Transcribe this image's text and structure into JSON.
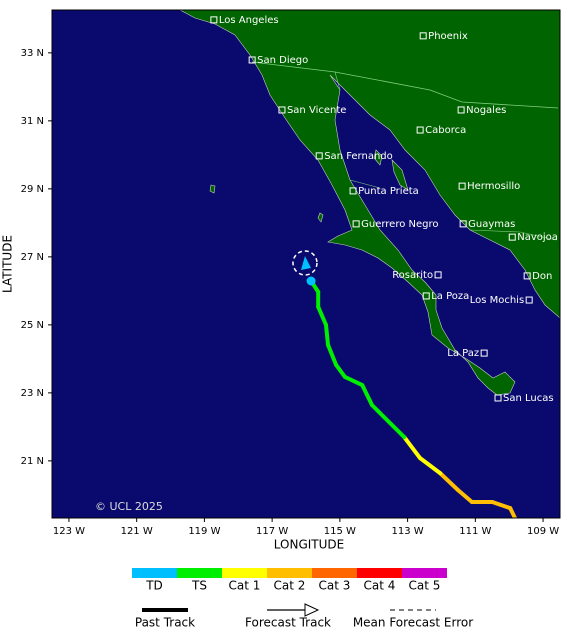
{
  "map": {
    "x_label": "LONGITUDE",
    "y_label": "LATITUDE",
    "credit": "© UCL 2025",
    "lon_range": [
      -123.5,
      -108.5
    ],
    "lat_range": [
      19.32,
      34.26
    ],
    "lon_ticks": [
      {
        "value": -123,
        "label": "123 W"
      },
      {
        "value": -121,
        "label": "121 W"
      },
      {
        "value": -119,
        "label": "119 W"
      },
      {
        "value": -117,
        "label": "117 W"
      },
      {
        "value": -115,
        "label": "115 W"
      },
      {
        "value": -113,
        "label": "113 W"
      },
      {
        "value": -111,
        "label": "111 W"
      },
      {
        "value": -109,
        "label": "109 W"
      }
    ],
    "lat_ticks": [
      {
        "value": 33,
        "label": "33 N"
      },
      {
        "value": 31,
        "label": "31 N"
      },
      {
        "value": 29,
        "label": "29 N"
      },
      {
        "value": 27,
        "label": "27 N"
      },
      {
        "value": 25,
        "label": "25 N"
      },
      {
        "value": 23,
        "label": "23 N"
      },
      {
        "value": 21,
        "label": "21 N"
      }
    ],
    "cities": [
      {
        "name": "Los Angeles",
        "lon": -118.72,
        "lat": 33.97
      },
      {
        "name": "Phoenix",
        "lon": -112.54,
        "lat": 33.5
      },
      {
        "name": "San Diego",
        "lon": -117.59,
        "lat": 32.79
      },
      {
        "name": "San Vicente",
        "lon": -116.71,
        "lat": 31.32
      },
      {
        "name": "Nogales",
        "lon": -111.42,
        "lat": 31.32
      },
      {
        "name": "Caborca",
        "lon": -112.63,
        "lat": 30.73
      },
      {
        "name": "San Fernando",
        "lon": -115.61,
        "lat": 29.97
      },
      {
        "name": "Hermosillo",
        "lon": -111.39,
        "lat": 29.08
      },
      {
        "name": "Punta Prieta",
        "lon": -114.61,
        "lat": 28.94
      },
      {
        "name": "Guerrero Negro",
        "lon": -114.52,
        "lat": 27.97
      },
      {
        "name": "Guaymas",
        "lon": -111.36,
        "lat": 27.97
      },
      {
        "name": "Navojoa",
        "lon": -109.91,
        "lat": 27.58
      },
      {
        "name": "Rosarito",
        "lon": -112.1,
        "lat": 26.47
      },
      {
        "name": "Don",
        "lon": -109.47,
        "lat": 26.44
      },
      {
        "name": "La Poza",
        "lon": -112.45,
        "lat": 25.85
      },
      {
        "name": "Los Mochis",
        "lon": -109.41,
        "lat": 25.73
      },
      {
        "name": "La Paz",
        "lon": -110.74,
        "lat": 24.17
      },
      {
        "name": "San Lucas",
        "lon": -110.33,
        "lat": 22.85
      }
    ],
    "track": [
      {
        "lon": -109.83,
        "lat": 19.32,
        "category": "Cat 2"
      },
      {
        "lon": -109.97,
        "lat": 19.61,
        "category": "Cat 2"
      },
      {
        "lon": -110.5,
        "lat": 19.79,
        "category": "Cat 2"
      },
      {
        "lon": -111.1,
        "lat": 19.79,
        "category": "Cat 2"
      },
      {
        "lon": -111.51,
        "lat": 20.14,
        "category": "Cat 2"
      },
      {
        "lon": -112.04,
        "lat": 20.64,
        "category": "Cat 1"
      },
      {
        "lon": -112.63,
        "lat": 21.08,
        "category": "Cat 1"
      },
      {
        "lon": -113.1,
        "lat": 21.7,
        "category": "TS"
      },
      {
        "lon": -114.05,
        "lat": 22.64,
        "category": "TS"
      },
      {
        "lon": -114.34,
        "lat": 23.23,
        "category": "TS"
      },
      {
        "lon": -114.85,
        "lat": 23.47,
        "category": "TS"
      },
      {
        "lon": -115.11,
        "lat": 23.82,
        "category": "TS"
      },
      {
        "lon": -115.35,
        "lat": 24.41,
        "category": "TS"
      },
      {
        "lon": -115.41,
        "lat": 25.0,
        "category": "TS"
      },
      {
        "lon": -115.64,
        "lat": 25.53,
        "category": "TS"
      },
      {
        "lon": -115.64,
        "lat": 25.97,
        "category": "TS"
      },
      {
        "lon": -115.85,
        "lat": 26.29,
        "category": "TD"
      }
    ],
    "forecast": {
      "lon": -116.03,
      "lat": 26.82,
      "category": "TD"
    }
  },
  "legend": {
    "scale": [
      {
        "label": "TD",
        "color": "#00bfff"
      },
      {
        "label": "TS",
        "color": "#00ee00"
      },
      {
        "label": "Cat 1",
        "color": "#ffff00"
      },
      {
        "label": "Cat 2",
        "color": "#ffbf00"
      },
      {
        "label": "Cat 3",
        "color": "#ff6600"
      },
      {
        "label": "Cat 4",
        "color": "#ff0000"
      },
      {
        "label": "Cat 5",
        "color": "#cc00cc"
      }
    ],
    "lines": [
      "Past Track",
      "Forecast Track",
      "Mean Forecast Error"
    ]
  }
}
